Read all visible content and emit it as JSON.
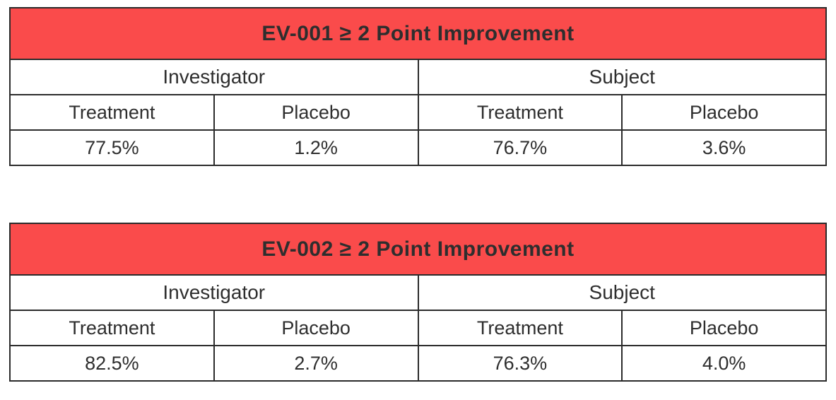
{
  "colors": {
    "accent_red": "#FA4B4B",
    "border": "#2B2B2B",
    "text": "#2E2E2E",
    "title_text": "#FFFFFF",
    "background": "#FFFFFF"
  },
  "tables": [
    {
      "title": "EV-001 ≥ 2 Point Improvement",
      "groups": [
        "Investigator",
        "Subject"
      ],
      "columns": [
        "Treatment",
        "Placebo",
        "Treatment",
        "Placebo"
      ],
      "values": [
        "77.5%",
        "1.2%",
        "76.7%",
        "3.6%"
      ]
    },
    {
      "title": "EV-002 ≥ 2 Point Improvement",
      "groups": [
        "Investigator",
        "Subject"
      ],
      "columns": [
        "Treatment",
        "Placebo",
        "Treatment",
        "Placebo"
      ],
      "values": [
        "82.5%",
        "2.7%",
        "76.3%",
        "4.0%"
      ]
    }
  ],
  "chart_data": [
    {
      "type": "table",
      "title": "EV-001 ≥ 2 Point Improvement",
      "column_groups": [
        "Investigator",
        "Subject"
      ],
      "columns": [
        "Investigator Treatment",
        "Investigator Placebo",
        "Subject Treatment",
        "Subject Placebo"
      ],
      "rows": [
        {
          "label": "≥ 2 Point Improvement",
          "values_pct": [
            77.5,
            1.2,
            76.7,
            3.6
          ]
        }
      ]
    },
    {
      "type": "table",
      "title": "EV-002 ≥ 2 Point Improvement",
      "column_groups": [
        "Investigator",
        "Subject"
      ],
      "columns": [
        "Investigator Treatment",
        "Investigator Placebo",
        "Subject Treatment",
        "Subject Placebo"
      ],
      "rows": [
        {
          "label": "≥ 2 Point Improvement",
          "values_pct": [
            82.5,
            2.7,
            76.3,
            4.0
          ]
        }
      ]
    }
  ]
}
